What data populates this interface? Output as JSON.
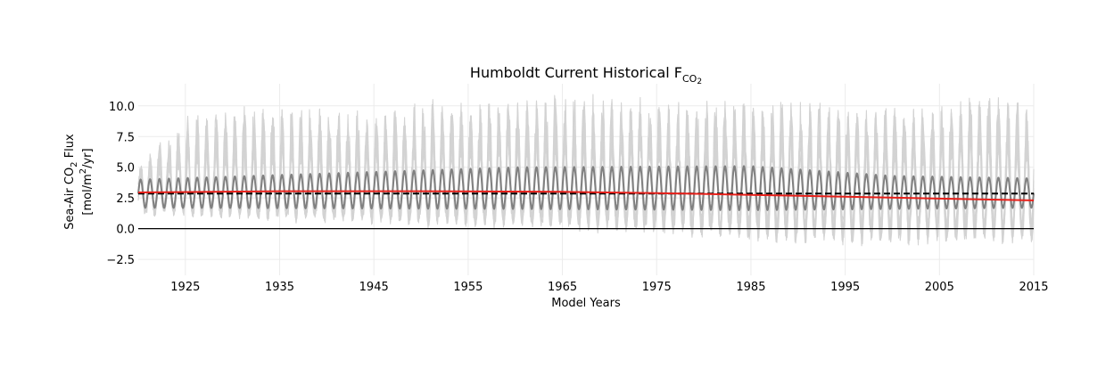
{
  "chart_data": {
    "type": "line",
    "title": {
      "main": "Humboldt Current Historical F",
      "subscript": "CO",
      "subsub": "2"
    },
    "xlabel": "Model Years",
    "ylabel": {
      "line1_pre": "Sea-Air CO",
      "line1_sub": "2",
      "line1_post": " Flux",
      "line2_pre": "[mol/m",
      "line2_sup": "2",
      "line2_post": "/yr]"
    },
    "xlim": [
      1920,
      2015
    ],
    "ylim": [
      -3.8,
      11.8
    ],
    "x_ticks": [
      1925,
      1935,
      1945,
      1955,
      1965,
      1975,
      1985,
      1995,
      2005,
      2015
    ],
    "x_tick_labels": [
      "1925",
      "1935",
      "1945",
      "1955",
      "1965",
      "1975",
      "1985",
      "1995",
      "2005",
      "2015"
    ],
    "y_ticks": [
      -2.5,
      0.0,
      2.5,
      5.0,
      7.5,
      10.0
    ],
    "y_tick_labels": [
      "−2.5",
      "0.0",
      "2.5",
      "5.0",
      "7.5",
      "10.0"
    ],
    "grid": true,
    "legend": "none",
    "series": [
      {
        "role": "ensemble-members",
        "style": "light-gray",
        "color": "#d3d3d3",
        "seasonal_mean": 3.0,
        "envelope_max": [
          [
            1920,
            5.0
          ],
          [
            1925,
            9.5
          ],
          [
            1935,
            10.0
          ],
          [
            1945,
            9.7
          ],
          [
            1955,
            10.8
          ],
          [
            1965,
            11.0
          ],
          [
            1975,
            10.5
          ],
          [
            1985,
            10.6
          ],
          [
            1995,
            10.0
          ],
          [
            2005,
            10.0
          ],
          [
            2010,
            11.8
          ],
          [
            2015,
            9.5
          ]
        ],
        "envelope_min": [
          [
            1920,
            1.2
          ],
          [
            1925,
            1.0
          ],
          [
            1935,
            0.8
          ],
          [
            1945,
            0.5
          ],
          [
            1955,
            0.2
          ],
          [
            1965,
            0.0
          ],
          [
            1975,
            -0.4
          ],
          [
            1985,
            -1.0
          ],
          [
            1995,
            -1.2
          ],
          [
            2005,
            -1.2
          ],
          [
            2015,
            -1.3
          ]
        ]
      },
      {
        "role": "ensemble-mean-monthly",
        "style": "dark-gray",
        "color": "#808080",
        "seasonal_max": [
          [
            1920,
            4.0
          ],
          [
            1960,
            5.0
          ],
          [
            1985,
            5.1
          ],
          [
            2000,
            4.3
          ],
          [
            2015,
            4.1
          ]
        ],
        "seasonal_min": [
          [
            1920,
            1.7
          ],
          [
            1960,
            1.6
          ],
          [
            1985,
            1.5
          ],
          [
            2015,
            1.7
          ]
        ]
      },
      {
        "role": "long-term-mean",
        "style": "black-dashed",
        "color": "#000000",
        "points": [
          [
            1920,
            2.85
          ],
          [
            2015,
            2.85
          ]
        ]
      },
      {
        "role": "trend",
        "style": "red",
        "color": "#e8201a",
        "points": [
          [
            1920,
            2.95
          ],
          [
            1935,
            3.05
          ],
          [
            1950,
            3.05
          ],
          [
            1965,
            3.0
          ],
          [
            1975,
            2.9
          ],
          [
            1985,
            2.75
          ],
          [
            1995,
            2.6
          ],
          [
            2005,
            2.45
          ],
          [
            2015,
            2.3
          ]
        ]
      },
      {
        "role": "zero-line",
        "style": "black-solid",
        "color": "#000000",
        "points": [
          [
            1920,
            0.0
          ],
          [
            2015,
            0.0
          ]
        ]
      }
    ]
  }
}
